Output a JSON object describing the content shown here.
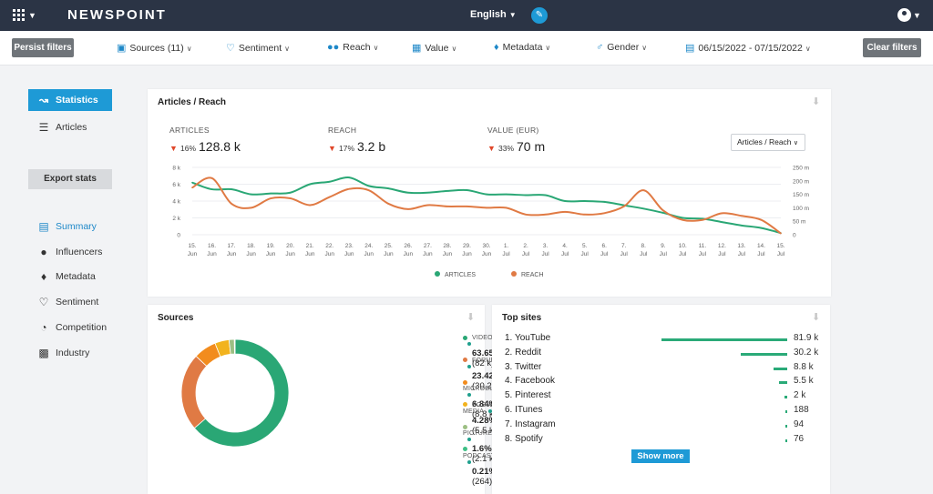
{
  "app": {
    "brand": "NEWSPOINT",
    "language": "English"
  },
  "filters": {
    "persist_label": "Persist filters",
    "clear_label": "Clear filters",
    "items": [
      {
        "label": "Sources (11)",
        "icon": "sources-icon"
      },
      {
        "label": "Sentiment",
        "icon": "heart-icon"
      },
      {
        "label": "Reach",
        "icon": "users-icon"
      },
      {
        "label": "Value",
        "icon": "money-icon"
      },
      {
        "label": "Metadata",
        "icon": "tags-icon"
      },
      {
        "label": "Gender",
        "icon": "gender-icon"
      },
      {
        "label": "06/15/2022 - 07/15/2022",
        "icon": "calendar-icon"
      }
    ]
  },
  "sidebar": {
    "items": [
      {
        "label": "Statistics"
      },
      {
        "label": "Articles"
      }
    ],
    "export_label": "Export stats",
    "sections": [
      {
        "label": "Summary"
      },
      {
        "label": "Influencers"
      },
      {
        "label": "Metadata"
      },
      {
        "label": "Sentiment"
      },
      {
        "label": "Competition"
      },
      {
        "label": "Industry"
      }
    ]
  },
  "articles_reach": {
    "title": "Articles / Reach",
    "dropdown": "Articles / Reach",
    "metrics": [
      {
        "label": "ARTICLES",
        "change": "16%",
        "value": "128.8 k"
      },
      {
        "label": "REACH",
        "change": "17%",
        "value": "3.2 b"
      },
      {
        "label": "VALUE (EUR)",
        "change": "33%",
        "value": "70 m"
      }
    ],
    "legend": [
      "ARTICLES",
      "REACH"
    ]
  },
  "chart_data": {
    "type": "line",
    "x": [
      "15. Jun",
      "16. Jun",
      "17. Jun",
      "18. Jun",
      "19. Jun",
      "20. Jun",
      "21. Jun",
      "22. Jun",
      "23. Jun",
      "24. Jun",
      "25. Jun",
      "26. Jun",
      "27. Jun",
      "28. Jun",
      "29. Jun",
      "30. Jun",
      "1. Jul",
      "2. Jul",
      "3. Jul",
      "4. Jul",
      "5. Jul",
      "6. Jul",
      "7. Jul",
      "8. Jul",
      "9. Jul",
      "10. Jul",
      "11. Jul",
      "12. Jul",
      "13. Jul",
      "14. Jul",
      "15. Jul"
    ],
    "x_tick_days": [
      "15.",
      "16.",
      "17.",
      "18.",
      "19.",
      "20.",
      "21.",
      "22.",
      "23.",
      "24.",
      "25.",
      "26.",
      "27.",
      "28.",
      "29.",
      "30.",
      "1.",
      "2.",
      "3.",
      "4.",
      "5.",
      "6.",
      "7.",
      "8.",
      "9.",
      "10.",
      "11.",
      "12.",
      "13.",
      "14.",
      "15."
    ],
    "x_tick_months": [
      "Jun",
      "Jun",
      "Jun",
      "Jun",
      "Jun",
      "Jun",
      "Jun",
      "Jun",
      "Jun",
      "Jun",
      "Jun",
      "Jun",
      "Jun",
      "Jun",
      "Jun",
      "Jun",
      "Jul",
      "Jul",
      "Jul",
      "Jul",
      "Jul",
      "Jul",
      "Jul",
      "Jul",
      "Jul",
      "Jul",
      "Jul",
      "Jul",
      "Jul",
      "Jul",
      "Jul"
    ],
    "series": [
      {
        "name": "ARTICLES",
        "axis": "left",
        "color": "#2aa775",
        "values": [
          6.2,
          5.4,
          5.4,
          4.8,
          4.9,
          5.0,
          6.0,
          6.3,
          6.8,
          5.8,
          5.5,
          5.0,
          5.0,
          5.2,
          5.3,
          4.8,
          4.8,
          4.7,
          4.7,
          4.0,
          4.0,
          3.9,
          3.5,
          3.1,
          2.6,
          2.0,
          1.9,
          1.5,
          1.1,
          0.8,
          0.2
        ]
      },
      {
        "name": "REACH",
        "axis": "right",
        "color": "#e07a44",
        "values": [
          175,
          210,
          115,
          100,
          135,
          135,
          110,
          140,
          170,
          165,
          115,
          95,
          110,
          105,
          105,
          100,
          100,
          75,
          75,
          85,
          75,
          80,
          105,
          165,
          90,
          55,
          55,
          80,
          70,
          55,
          5
        ]
      }
    ],
    "ylim_left": [
      0,
      8
    ],
    "ylim_right": [
      0,
      250
    ],
    "yticks_left": [
      "0",
      "2 k",
      "4 k",
      "6 k",
      "8 k"
    ],
    "yticks_right": [
      "0",
      "50 m",
      "100 m",
      "150 m",
      "200 m",
      "250 m"
    ],
    "grid": true,
    "legend": "bottom"
  },
  "sources": {
    "title": "Sources",
    "items": [
      {
        "category": "VIDEOS",
        "pct": "63.65%",
        "count": "(82 k)",
        "color": "#2aa775",
        "value": 63.65
      },
      {
        "category": "FORUMS",
        "pct": "23.42%",
        "count": "(30.2 k)",
        "color": "#e07a44",
        "value": 23.42
      },
      {
        "category": "MICROBLOGS",
        "pct": "6.84%",
        "count": "(8.8 k)",
        "color": "#f28c1e",
        "value": 6.84
      },
      {
        "category": "SOCIAL MEDIA",
        "pct": "4.28%",
        "count": "(5.5 k)",
        "color": "#f2b31e",
        "value": 4.28
      },
      {
        "category": "PICTURES",
        "pct": "1.6%",
        "count": "(2.1 k)",
        "color": "#9cbf83",
        "value": 1.6
      },
      {
        "category": "PODCAST",
        "pct": "0.21%",
        "count": "(264)",
        "color": "#3fbf86",
        "value": 0.21
      }
    ]
  },
  "top_sites": {
    "title": "Top sites",
    "show_more": "Show more",
    "items": [
      {
        "rank": "1.",
        "name": "YouTube",
        "value": "81.9 k",
        "fraction": 1.0
      },
      {
        "rank": "2.",
        "name": "Reddit",
        "value": "30.2 k",
        "fraction": 0.37
      },
      {
        "rank": "3.",
        "name": "Twitter",
        "value": "8.8 k",
        "fraction": 0.107
      },
      {
        "rank": "4.",
        "name": "Facebook",
        "value": "5.5 k",
        "fraction": 0.067
      },
      {
        "rank": "5.",
        "name": "Pinterest",
        "value": "2 k",
        "fraction": 0.024
      },
      {
        "rank": "6.",
        "name": "ITunes",
        "value": "188",
        "fraction": 0.005
      },
      {
        "rank": "7.",
        "name": "Instagram",
        "value": "94",
        "fraction": 0.004
      },
      {
        "rank": "8.",
        "name": "Spotify",
        "value": "76",
        "fraction": 0.004
      }
    ]
  }
}
